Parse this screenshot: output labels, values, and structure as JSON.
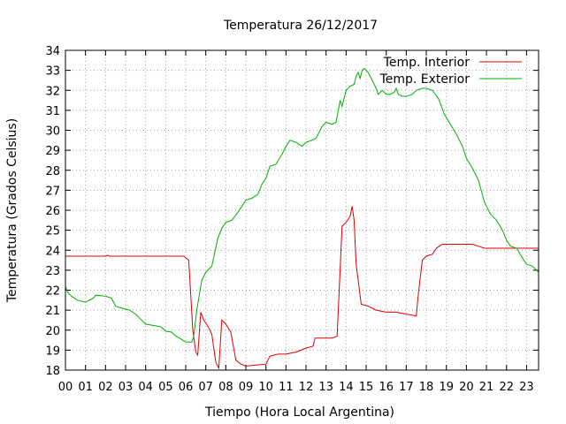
{
  "chart_data": {
    "type": "line",
    "title": "Temperatura 26/12/2017",
    "xlabel": "Tiempo (Hora Local Argentina)",
    "ylabel": "Temperatura (Grados Celsius)",
    "xlim": [
      0,
      23.6
    ],
    "ylim": [
      18,
      34
    ],
    "x_tick_labels": [
      "00",
      "01",
      "02",
      "03",
      "04",
      "05",
      "06",
      "07",
      "08",
      "09",
      "10",
      "11",
      "12",
      "13",
      "14",
      "15",
      "16",
      "17",
      "18",
      "19",
      "20",
      "21",
      "22",
      "23"
    ],
    "y_tick_labels": [
      "18",
      "19",
      "20",
      "21",
      "22",
      "23",
      "24",
      "25",
      "26",
      "27",
      "28",
      "29",
      "30",
      "31",
      "32",
      "33",
      "34"
    ],
    "grid": true,
    "legend_position": "top-right",
    "series": [
      {
        "name": "Temp. Interior",
        "color": "#e00000",
        "points": [
          [
            0.0,
            23.7
          ],
          [
            1.0,
            23.7
          ],
          [
            2.0,
            23.7
          ],
          [
            2.1,
            23.75
          ],
          [
            2.2,
            23.7
          ],
          [
            3.0,
            23.7
          ],
          [
            4.0,
            23.7
          ],
          [
            5.0,
            23.7
          ],
          [
            5.9,
            23.7
          ],
          [
            6.15,
            23.5
          ],
          [
            6.35,
            20.0
          ],
          [
            6.5,
            18.9
          ],
          [
            6.6,
            18.75
          ],
          [
            6.75,
            20.9
          ],
          [
            6.9,
            20.5
          ],
          [
            7.1,
            20.2
          ],
          [
            7.3,
            19.8
          ],
          [
            7.5,
            18.4
          ],
          [
            7.65,
            18.1
          ],
          [
            7.8,
            20.5
          ],
          [
            8.0,
            20.3
          ],
          [
            8.25,
            19.9
          ],
          [
            8.5,
            18.5
          ],
          [
            8.75,
            18.3
          ],
          [
            9.0,
            18.2
          ],
          [
            9.5,
            18.25
          ],
          [
            10.0,
            18.3
          ],
          [
            10.2,
            18.7
          ],
          [
            10.6,
            18.8
          ],
          [
            11.0,
            18.8
          ],
          [
            11.5,
            18.9
          ],
          [
            12.0,
            19.1
          ],
          [
            12.35,
            19.2
          ],
          [
            12.45,
            19.6
          ],
          [
            12.8,
            19.6
          ],
          [
            13.3,
            19.6
          ],
          [
            13.55,
            19.7
          ],
          [
            13.8,
            25.2
          ],
          [
            14.0,
            25.4
          ],
          [
            14.2,
            25.7
          ],
          [
            14.3,
            26.2
          ],
          [
            14.4,
            25.5
          ],
          [
            14.5,
            23.3
          ],
          [
            14.75,
            21.3
          ],
          [
            15.1,
            21.2
          ],
          [
            15.5,
            21.0
          ],
          [
            16.0,
            20.9
          ],
          [
            16.5,
            20.9
          ],
          [
            17.0,
            20.8
          ],
          [
            17.3,
            20.75
          ],
          [
            17.5,
            20.7
          ],
          [
            17.6,
            21.8
          ],
          [
            17.8,
            23.5
          ],
          [
            18.0,
            23.7
          ],
          [
            18.3,
            23.8
          ],
          [
            18.5,
            24.1
          ],
          [
            18.8,
            24.3
          ],
          [
            19.3,
            24.3
          ],
          [
            19.8,
            24.3
          ],
          [
            20.3,
            24.3
          ],
          [
            20.6,
            24.2
          ],
          [
            20.9,
            24.1
          ],
          [
            21.3,
            24.1
          ],
          [
            22.0,
            24.1
          ],
          [
            22.5,
            24.1
          ],
          [
            23.0,
            24.1
          ],
          [
            23.6,
            24.1
          ]
        ]
      },
      {
        "name": "Temp. Exterior",
        "color": "#00b000",
        "points": [
          [
            0.0,
            22.2
          ],
          [
            0.1,
            21.9
          ],
          [
            0.3,
            21.7
          ],
          [
            0.6,
            21.5
          ],
          [
            1.0,
            21.4
          ],
          [
            1.2,
            21.5
          ],
          [
            1.4,
            21.6
          ],
          [
            1.5,
            21.75
          ],
          [
            2.0,
            21.7
          ],
          [
            2.3,
            21.6
          ],
          [
            2.5,
            21.2
          ],
          [
            2.8,
            21.1
          ],
          [
            3.2,
            21.0
          ],
          [
            3.5,
            20.8
          ],
          [
            3.7,
            20.6
          ],
          [
            4.0,
            20.3
          ],
          [
            4.3,
            20.25
          ],
          [
            4.6,
            20.2
          ],
          [
            4.8,
            20.15
          ],
          [
            5.0,
            19.95
          ],
          [
            5.3,
            19.9
          ],
          [
            5.5,
            19.7
          ],
          [
            5.7,
            19.6
          ],
          [
            6.0,
            19.4
          ],
          [
            6.3,
            19.4
          ],
          [
            6.4,
            19.7
          ],
          [
            6.55,
            21.0
          ],
          [
            6.8,
            22.5
          ],
          [
            7.0,
            22.9
          ],
          [
            7.3,
            23.2
          ],
          [
            7.6,
            24.6
          ],
          [
            7.8,
            25.1
          ],
          [
            8.0,
            25.4
          ],
          [
            8.3,
            25.5
          ],
          [
            8.6,
            25.9
          ],
          [
            9.0,
            26.5
          ],
          [
            9.3,
            26.6
          ],
          [
            9.6,
            26.8
          ],
          [
            9.8,
            27.3
          ],
          [
            10.0,
            27.6
          ],
          [
            10.2,
            28.2
          ],
          [
            10.5,
            28.3
          ],
          [
            10.8,
            28.8
          ],
          [
            11.0,
            29.2
          ],
          [
            11.2,
            29.5
          ],
          [
            11.5,
            29.4
          ],
          [
            11.8,
            29.2
          ],
          [
            12.0,
            29.4
          ],
          [
            12.3,
            29.5
          ],
          [
            12.5,
            29.6
          ],
          [
            12.8,
            30.2
          ],
          [
            13.0,
            30.4
          ],
          [
            13.3,
            30.3
          ],
          [
            13.5,
            30.4
          ],
          [
            13.7,
            31.5
          ],
          [
            13.8,
            31.2
          ],
          [
            14.0,
            32.0
          ],
          [
            14.2,
            32.2
          ],
          [
            14.4,
            32.3
          ],
          [
            14.5,
            32.7
          ],
          [
            14.6,
            32.9
          ],
          [
            14.7,
            32.6
          ],
          [
            14.8,
            33.0
          ],
          [
            14.9,
            33.1
          ],
          [
            15.1,
            32.9
          ],
          [
            15.3,
            32.5
          ],
          [
            15.5,
            32.1
          ],
          [
            15.6,
            31.8
          ],
          [
            15.8,
            32.0
          ],
          [
            16.0,
            31.8
          ],
          [
            16.2,
            31.8
          ],
          [
            16.4,
            31.9
          ],
          [
            16.5,
            32.1
          ],
          [
            16.6,
            31.8
          ],
          [
            16.8,
            31.7
          ],
          [
            17.0,
            31.7
          ],
          [
            17.3,
            31.8
          ],
          [
            17.5,
            32.0
          ],
          [
            17.8,
            32.1
          ],
          [
            18.0,
            32.1
          ],
          [
            18.3,
            32.0
          ],
          [
            18.6,
            31.6
          ],
          [
            18.9,
            30.8
          ],
          [
            19.2,
            30.3
          ],
          [
            19.5,
            29.8
          ],
          [
            19.8,
            29.2
          ],
          [
            20.0,
            28.6
          ],
          [
            20.3,
            28.1
          ],
          [
            20.6,
            27.5
          ],
          [
            20.9,
            26.4
          ],
          [
            21.2,
            25.8
          ],
          [
            21.5,
            25.5
          ],
          [
            21.8,
            25.0
          ],
          [
            22.0,
            24.5
          ],
          [
            22.2,
            24.2
          ],
          [
            22.5,
            24.1
          ],
          [
            22.8,
            23.6
          ],
          [
            23.0,
            23.3
          ],
          [
            23.3,
            23.2
          ],
          [
            23.5,
            23.0
          ],
          [
            23.6,
            22.9
          ]
        ]
      }
    ]
  }
}
